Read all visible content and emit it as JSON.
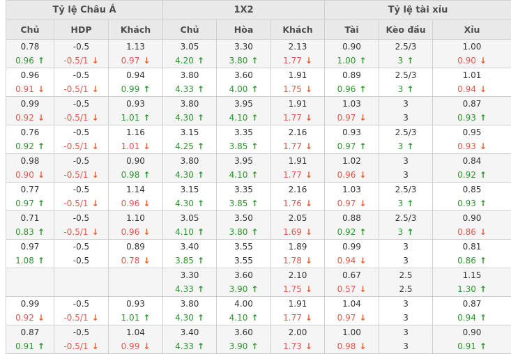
{
  "table": {
    "groups": [
      {
        "label": "Tỷ lệ Châu Á"
      },
      {
        "label": "1X2"
      },
      {
        "label": "Tỷ lệ tài xỉu"
      }
    ],
    "columns": [
      "Chủ",
      "HDP",
      "Khách",
      "Chủ",
      "Hòa",
      "Khách",
      "Tài",
      "Kèo đầu",
      "Xỉu"
    ],
    "rows": [
      {
        "cells": [
          {
            "t": "0.78",
            "b": "0.96",
            "d": "up"
          },
          {
            "t": "-0.5",
            "b": "-0.5/1",
            "d": "down"
          },
          {
            "t": "1.13",
            "b": "0.97",
            "d": "down"
          },
          {
            "t": "3.05",
            "b": "4.20",
            "d": "up"
          },
          {
            "t": "3.30",
            "b": "3.80",
            "d": "up"
          },
          {
            "t": "2.13",
            "b": "1.77",
            "d": "down"
          },
          {
            "t": "0.90",
            "b": "1.00",
            "d": "up"
          },
          {
            "t": "2.5/3",
            "b": "3",
            "d": "up"
          },
          {
            "t": "1.00",
            "b": "0.90",
            "d": "down"
          }
        ]
      },
      {
        "cells": [
          {
            "t": "0.96",
            "b": "0.91",
            "d": "down"
          },
          {
            "t": "-0.5",
            "b": "-0.5/1",
            "d": "down"
          },
          {
            "t": "0.94",
            "b": "0.99",
            "d": "up"
          },
          {
            "t": "3.80",
            "b": "4.33",
            "d": "up"
          },
          {
            "t": "3.60",
            "b": "4.00",
            "d": "up"
          },
          {
            "t": "1.91",
            "b": "1.75",
            "d": "down"
          },
          {
            "t": "0.89",
            "b": "0.96",
            "d": "up"
          },
          {
            "t": "2.5/3",
            "b": "3",
            "d": "up"
          },
          {
            "t": "1.01",
            "b": "0.94",
            "d": "down"
          }
        ]
      },
      {
        "cells": [
          {
            "t": "0.99",
            "b": "0.92",
            "d": "down"
          },
          {
            "t": "-0.5",
            "b": "-0.5/1",
            "d": "down"
          },
          {
            "t": "0.93",
            "b": "1.01",
            "d": "up"
          },
          {
            "t": "3.80",
            "b": "4.30",
            "d": "up"
          },
          {
            "t": "3.95",
            "b": "4.10",
            "d": "up"
          },
          {
            "t": "1.91",
            "b": "1.77",
            "d": "down"
          },
          {
            "t": "1.03",
            "b": "0.97",
            "d": "down"
          },
          {
            "t": "3",
            "b": "3",
            "d": "none"
          },
          {
            "t": "0.87",
            "b": "0.93",
            "d": "up"
          }
        ]
      },
      {
        "cells": [
          {
            "t": "0.76",
            "b": "0.92",
            "d": "up"
          },
          {
            "t": "-0.5",
            "b": "-0.5/1",
            "d": "down"
          },
          {
            "t": "1.16",
            "b": "1.01",
            "d": "down"
          },
          {
            "t": "3.15",
            "b": "4.25",
            "d": "up"
          },
          {
            "t": "3.35",
            "b": "3.85",
            "d": "up"
          },
          {
            "t": "2.16",
            "b": "1.77",
            "d": "down"
          },
          {
            "t": "0.93",
            "b": "0.97",
            "d": "up"
          },
          {
            "t": "2.5/3",
            "b": "3",
            "d": "up"
          },
          {
            "t": "0.95",
            "b": "0.93",
            "d": "down"
          }
        ]
      },
      {
        "cells": [
          {
            "t": "0.98",
            "b": "0.90",
            "d": "down"
          },
          {
            "t": "-0.5",
            "b": "-0.5/1",
            "d": "down"
          },
          {
            "t": "0.90",
            "b": "0.98",
            "d": "up"
          },
          {
            "t": "3.80",
            "b": "4.30",
            "d": "up"
          },
          {
            "t": "3.95",
            "b": "4.10",
            "d": "up"
          },
          {
            "t": "1.91",
            "b": "1.77",
            "d": "down"
          },
          {
            "t": "1.02",
            "b": "0.96",
            "d": "down"
          },
          {
            "t": "3",
            "b": "3",
            "d": "none"
          },
          {
            "t": "0.84",
            "b": "0.92",
            "d": "up"
          }
        ]
      },
      {
        "cells": [
          {
            "t": "0.77",
            "b": "0.97",
            "d": "up"
          },
          {
            "t": "-0.5",
            "b": "-0.5/1",
            "d": "down"
          },
          {
            "t": "1.14",
            "b": "0.96",
            "d": "down"
          },
          {
            "t": "3.15",
            "b": "4.30",
            "d": "up"
          },
          {
            "t": "3.35",
            "b": "3.85",
            "d": "up"
          },
          {
            "t": "2.16",
            "b": "1.76",
            "d": "down"
          },
          {
            "t": "1.03",
            "b": "0.97",
            "d": "down"
          },
          {
            "t": "2.5/3",
            "b": "3",
            "d": "up"
          },
          {
            "t": "0.85",
            "b": "0.93",
            "d": "up"
          }
        ]
      },
      {
        "cells": [
          {
            "t": "0.71",
            "b": "0.83",
            "d": "up"
          },
          {
            "t": "-0.5",
            "b": "-0.5/1",
            "d": "down"
          },
          {
            "t": "1.10",
            "b": "0.96",
            "d": "down"
          },
          {
            "t": "3.05",
            "b": "4.10",
            "d": "up"
          },
          {
            "t": "3.50",
            "b": "3.80",
            "d": "up"
          },
          {
            "t": "2.05",
            "b": "1.69",
            "d": "down"
          },
          {
            "t": "0.88",
            "b": "0.92",
            "d": "up"
          },
          {
            "t": "2.5/3",
            "b": "3",
            "d": "up"
          },
          {
            "t": "0.90",
            "b": "0.86",
            "d": "down"
          }
        ]
      },
      {
        "cells": [
          {
            "t": "0.97",
            "b": "1.08",
            "d": "up"
          },
          {
            "t": "-0.5",
            "b": "-0.5",
            "d": "none"
          },
          {
            "t": "0.89",
            "b": "0.78",
            "d": "down"
          },
          {
            "t": "3.40",
            "b": "3.85",
            "d": "up"
          },
          {
            "t": "3.55",
            "b": "3.55",
            "d": "none"
          },
          {
            "t": "1.89",
            "b": "1.78",
            "d": "down"
          },
          {
            "t": "0.99",
            "b": "0.94",
            "d": "down"
          },
          {
            "t": "3",
            "b": "3",
            "d": "none"
          },
          {
            "t": "0.81",
            "b": "0.86",
            "d": "up"
          }
        ]
      },
      {
        "cells": [
          {
            "t": "",
            "b": "",
            "d": "none"
          },
          {
            "t": "",
            "b": "",
            "d": "none"
          },
          {
            "t": "",
            "b": "",
            "d": "none"
          },
          {
            "t": "3.30",
            "b": "4.33",
            "d": "up"
          },
          {
            "t": "3.60",
            "b": "3.90",
            "d": "up"
          },
          {
            "t": "2.10",
            "b": "1.75",
            "d": "down"
          },
          {
            "t": "0.67",
            "b": "0.57",
            "d": "down"
          },
          {
            "t": "2.5",
            "b": "2.5",
            "d": "none"
          },
          {
            "t": "1.15",
            "b": "1.30",
            "d": "up"
          }
        ]
      },
      {
        "cells": [
          {
            "t": "0.99",
            "b": "0.92",
            "d": "down"
          },
          {
            "t": "-0.5",
            "b": "-0.5/1",
            "d": "down"
          },
          {
            "t": "0.93",
            "b": "1.01",
            "d": "up"
          },
          {
            "t": "3.80",
            "b": "4.30",
            "d": "up"
          },
          {
            "t": "4.00",
            "b": "4.10",
            "d": "up"
          },
          {
            "t": "1.91",
            "b": "1.77",
            "d": "down"
          },
          {
            "t": "1.04",
            "b": "0.97",
            "d": "down"
          },
          {
            "t": "3",
            "b": "3",
            "d": "none"
          },
          {
            "t": "0.87",
            "b": "0.94",
            "d": "up"
          }
        ]
      },
      {
        "cells": [
          {
            "t": "0.87",
            "b": "0.91",
            "d": "up"
          },
          {
            "t": "-0.5",
            "b": "-0.5/1",
            "d": "down"
          },
          {
            "t": "1.04",
            "b": "0.99",
            "d": "down"
          },
          {
            "t": "3.40",
            "b": "4.33",
            "d": "up"
          },
          {
            "t": "3.60",
            "b": "3.90",
            "d": "up"
          },
          {
            "t": "2.00",
            "b": "1.73",
            "d": "down"
          },
          {
            "t": "1.00",
            "b": "0.98",
            "d": "down"
          },
          {
            "t": "3",
            "b": "3",
            "d": "none"
          },
          {
            "t": "0.90",
            "b": "0.91",
            "d": "up"
          }
        ]
      }
    ]
  },
  "icons": {
    "up_arrow": "↑",
    "down_arrow": "↓"
  },
  "colors": {
    "up_text": "#2d962d",
    "down_text": "#e4564a",
    "down_arrow": "#e06030",
    "header_bg": "#e9e9e9",
    "row_alt_bg": "#f5f5f5",
    "border": "#d0d0d0",
    "text": "#333333"
  }
}
